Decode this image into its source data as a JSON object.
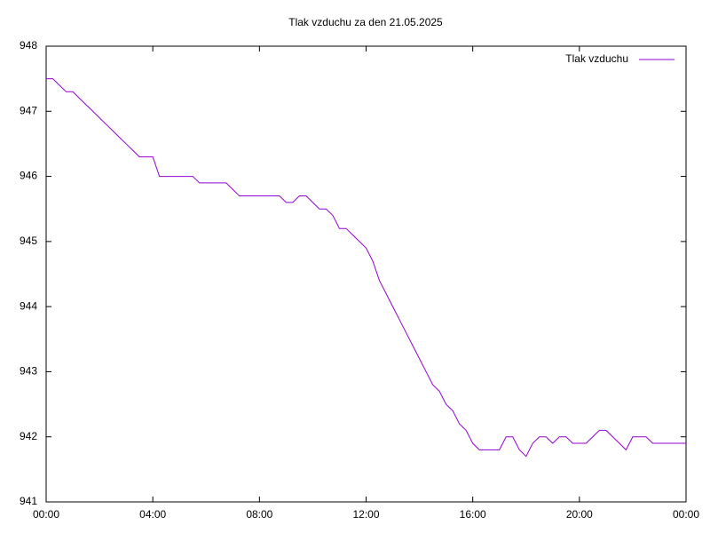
{
  "chart_data": {
    "type": "line",
    "title": "Tlak vzduchu za den 21.05.2025",
    "x": [
      0,
      0.25,
      0.5,
      0.75,
      1,
      1.25,
      1.5,
      1.75,
      2,
      2.25,
      2.5,
      2.75,
      3,
      3.25,
      3.5,
      3.75,
      4,
      4.25,
      4.5,
      4.75,
      5,
      5.25,
      5.5,
      5.75,
      6,
      6.25,
      6.5,
      6.75,
      7,
      7.25,
      7.5,
      7.75,
      8,
      8.25,
      8.5,
      8.75,
      9,
      9.25,
      9.5,
      9.75,
      10,
      10.25,
      10.5,
      10.75,
      11,
      11.25,
      11.5,
      11.75,
      12,
      12.25,
      12.5,
      12.75,
      13,
      13.25,
      13.5,
      13.75,
      14,
      14.25,
      14.5,
      14.75,
      15,
      15.25,
      15.5,
      15.75,
      16,
      16.25,
      16.5,
      16.75,
      17,
      17.25,
      17.5,
      17.75,
      18,
      18.25,
      18.5,
      18.75,
      19,
      19.25,
      19.5,
      19.75,
      20,
      20.25,
      20.5,
      20.75,
      21,
      21.25,
      21.5,
      21.75,
      22,
      22.25,
      22.5,
      22.75,
      23,
      23.25,
      23.5,
      23.75,
      24
    ],
    "series": [
      {
        "name": "Tlak vzduchu",
        "color": "#9400d3",
        "values": [
          947.5,
          947.5,
          947.4,
          947.3,
          947.3,
          947.2,
          947.1,
          947.0,
          946.9,
          946.8,
          946.7,
          946.6,
          946.5,
          946.4,
          946.3,
          946.3,
          946.3,
          946.0,
          946.0,
          946.0,
          946.0,
          946.0,
          946.0,
          945.9,
          945.9,
          945.9,
          945.9,
          945.9,
          945.8,
          945.7,
          945.7,
          945.7,
          945.7,
          945.7,
          945.7,
          945.7,
          945.6,
          945.6,
          945.7,
          945.7,
          945.6,
          945.5,
          945.5,
          945.4,
          945.2,
          945.2,
          945.1,
          945.0,
          944.9,
          944.7,
          944.4,
          944.2,
          944.0,
          943.8,
          943.6,
          943.4,
          943.2,
          943.0,
          942.8,
          942.7,
          942.5,
          942.4,
          942.2,
          942.1,
          941.9,
          941.8,
          941.8,
          941.8,
          941.8,
          942.0,
          942.0,
          941.8,
          941.7,
          941.9,
          942.0,
          942.0,
          941.9,
          942.0,
          942.0,
          941.9,
          941.9,
          941.9,
          942.0,
          942.1,
          942.1,
          942.0,
          941.9,
          941.8,
          942.0,
          942.0,
          942.0,
          941.9,
          941.9,
          941.9,
          941.9,
          941.9,
          941.9
        ]
      }
    ],
    "xlim": [
      0,
      24
    ],
    "xticks": [
      {
        "value": 0,
        "label": "00:00"
      },
      {
        "value": 4,
        "label": "04:00"
      },
      {
        "value": 8,
        "label": "08:00"
      },
      {
        "value": 12,
        "label": "12:00"
      },
      {
        "value": 16,
        "label": "16:00"
      },
      {
        "value": 20,
        "label": "20:00"
      },
      {
        "value": 24,
        "label": "00:00"
      }
    ],
    "ylim": [
      941,
      948
    ],
    "yticks": [
      941,
      942,
      943,
      944,
      945,
      946,
      947,
      948
    ],
    "legend": "upper right"
  }
}
